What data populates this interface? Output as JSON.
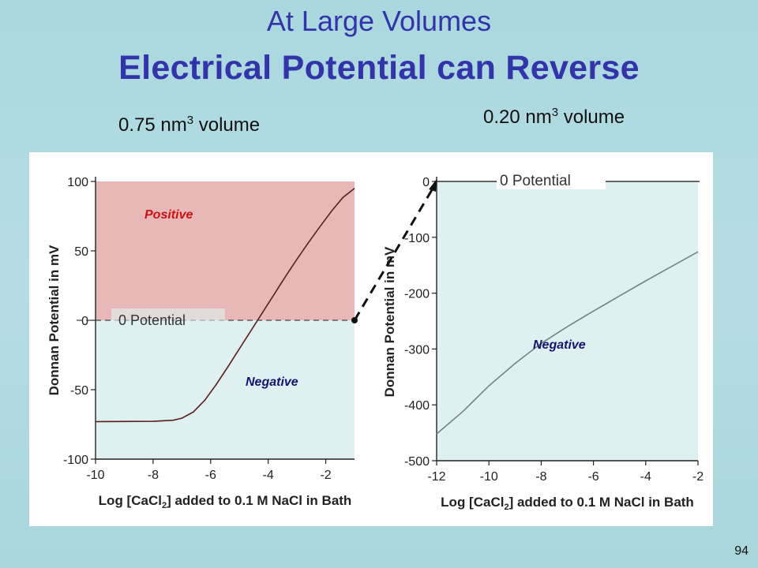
{
  "slide": {
    "title_line1": "At Large Volumes",
    "title_line2": "Electrical Potential can Reverse",
    "left_volume_prefix": "0.75 nm",
    "left_volume_exp": "3",
    "left_volume_suffix": " volume",
    "right_volume_prefix": "0.20 nm",
    "right_volume_exp": "3",
    "right_volume_suffix": " volume",
    "page_number": "94"
  },
  "colors": {
    "positive_region": "#e8b8b8",
    "negative_region": "#dff0f0",
    "curve_left": "#5a1e1e",
    "curve_right": "#6c8686",
    "title": "#3333aa",
    "positive_label": "#cc1111",
    "negative_label": "#141470"
  },
  "chart_data": [
    {
      "type": "line",
      "xlabel": "Log [CaCl2] added to 0.1 M NaCl in Bath",
      "xlabel_parts": [
        "Log [CaCl",
        "2",
        "] added to 0.1 M NaCl in Bath"
      ],
      "ylabel": "Donnan Potential in mV",
      "xlim": [
        -10,
        -1
      ],
      "ylim": [
        -100,
        100
      ],
      "x_ticks": [
        "-10",
        "-8",
        "-6",
        "-4",
        "-2"
      ],
      "x_tick_values": [
        -10,
        -8,
        -6,
        -4,
        -2
      ],
      "y_ticks": [
        "100",
        "50",
        "0",
        "-50",
        "-100"
      ],
      "y_tick_values": [
        100,
        50,
        0,
        -50,
        -100
      ],
      "grid": false,
      "regions": [
        {
          "label": "Positive",
          "from": 0,
          "to": 100
        },
        {
          "label": "Negative",
          "from": -100,
          "to": 0
        }
      ],
      "zero_line_label": "0 Potential",
      "series": [
        {
          "x": [
            -10,
            -8,
            -7.3,
            -7,
            -6.6,
            -6.2,
            -5.8,
            -5.4,
            -5,
            -4.6,
            -4.2,
            -3.8,
            -3.4,
            -3,
            -2.6,
            -2.2,
            -1.8,
            -1.4,
            -1
          ],
          "y": [
            -73,
            -72.8,
            -72,
            -70.5,
            -66,
            -57.5,
            -46,
            -33.5,
            -20.5,
            -7.5,
            5.5,
            18.5,
            31.5,
            44,
            56,
            67.5,
            78.5,
            88.5,
            95
          ]
        }
      ],
      "annotation_point": [
        -1,
        0
      ]
    },
    {
      "type": "line",
      "xlabel": "Log [CaCl2] added to 0.1 M NaCl in Bath",
      "xlabel_parts": [
        "Log [CaCl",
        "2",
        "] added to 0.1 M NaCl in Bath"
      ],
      "ylabel": "Donnan Potential in mV",
      "xlim": [
        -12,
        -2
      ],
      "ylim": [
        -500,
        0
      ],
      "x_ticks": [
        "-12",
        "-10",
        "-8",
        "-6",
        "-4",
        "-2"
      ],
      "x_tick_values": [
        -12,
        -10,
        -8,
        -6,
        -4,
        -2
      ],
      "y_ticks": [
        "0",
        "-100",
        "-200",
        "-300",
        "-400",
        "-500"
      ],
      "y_tick_values": [
        0,
        -100,
        -200,
        -300,
        -400,
        -500
      ],
      "grid": false,
      "regions": [
        {
          "label": "Negative",
          "from": -500,
          "to": 0
        }
      ],
      "zero_line_label": "0 Potential",
      "series": [
        {
          "x": [
            -12,
            -11,
            -10,
            -9,
            -8,
            -7,
            -6,
            -5,
            -4,
            -3,
            -2
          ],
          "y": [
            -452,
            -412,
            -366,
            -326,
            -290,
            -260,
            -232,
            -205,
            -178,
            -152,
            -126
          ]
        }
      ]
    }
  ]
}
